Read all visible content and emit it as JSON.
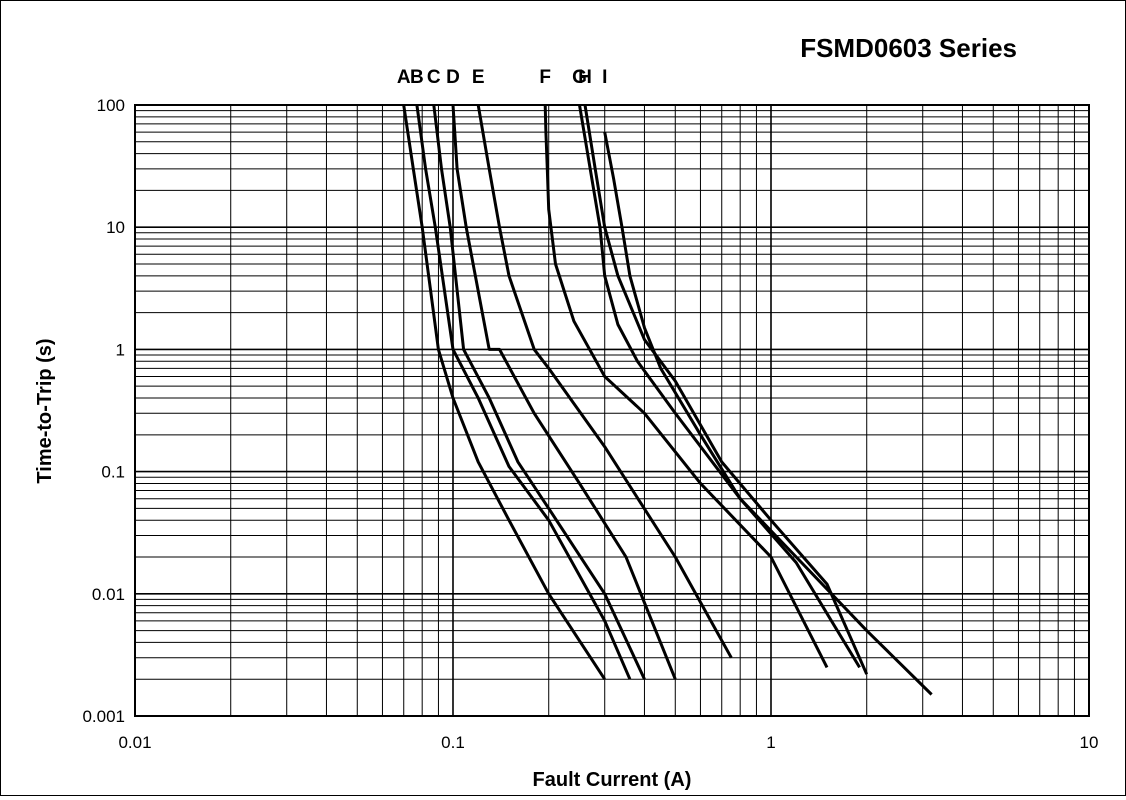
{
  "chart_data": {
    "type": "line",
    "title": "FSMD0603 Series",
    "xlabel": "Fault Current (A)",
    "ylabel": "Time-to-Trip (s)",
    "x_scale": "log",
    "y_scale": "log",
    "xlim": [
      0.01,
      10
    ],
    "ylim": [
      0.001,
      100
    ],
    "x_ticks": [
      "0.01",
      "0.1",
      "1",
      "10"
    ],
    "y_ticks": [
      "0.001",
      "0.01",
      "0.1",
      "1",
      "10",
      "100"
    ],
    "grid": true,
    "series": [
      {
        "name": "A",
        "x": [
          0.07,
          0.075,
          0.08,
          0.09,
          0.1,
          0.12,
          0.15,
          0.2,
          0.3
        ],
        "y": [
          100,
          30,
          10,
          1,
          0.4,
          0.12,
          0.04,
          0.01,
          0.002
        ]
      },
      {
        "name": "B",
        "x": [
          0.077,
          0.082,
          0.088,
          0.1,
          0.12,
          0.15,
          0.2,
          0.3,
          0.36
        ],
        "y": [
          100,
          30,
          10,
          1,
          0.4,
          0.11,
          0.04,
          0.006,
          0.002
        ]
      },
      {
        "name": "C",
        "x": [
          0.087,
          0.092,
          0.098,
          0.108,
          0.13,
          0.16,
          0.2,
          0.3,
          0.4
        ],
        "y": [
          100,
          30,
          10,
          1,
          0.4,
          0.12,
          0.05,
          0.01,
          0.002
        ]
      },
      {
        "name": "D",
        "x": [
          0.1,
          0.103,
          0.11,
          0.13,
          0.14,
          0.18,
          0.25,
          0.35,
          0.5
        ],
        "y": [
          100,
          30,
          10,
          1,
          1,
          0.3,
          0.08,
          0.02,
          0.002
        ]
      },
      {
        "name": "E",
        "x": [
          0.12,
          0.13,
          0.14,
          0.15,
          0.18,
          0.2,
          0.3,
          0.5,
          0.75
        ],
        "y": [
          100,
          30,
          10,
          4,
          1,
          0.7,
          0.16,
          0.02,
          0.003
        ]
      },
      {
        "name": "F",
        "x": [
          0.195,
          0.196,
          0.198,
          0.2,
          0.21,
          0.24,
          0.3,
          0.4,
          0.6,
          1.0,
          1.5
        ],
        "y": [
          100,
          60,
          30,
          14,
          5,
          1.7,
          0.6,
          0.3,
          0.08,
          0.02,
          0.0025
        ]
      },
      {
        "name": "G",
        "x": [
          0.25,
          0.27,
          0.29,
          0.3,
          0.33,
          0.38,
          0.5,
          0.8,
          1.2,
          1.9
        ],
        "y": [
          100,
          30,
          10,
          4,
          1.6,
          0.8,
          0.3,
          0.06,
          0.018,
          0.0025
        ]
      },
      {
        "name": "H",
        "x": [
          0.26,
          0.28,
          0.3,
          0.33,
          0.4,
          0.5,
          0.7,
          1.0,
          1.5,
          2.0
        ],
        "y": [
          100,
          30,
          10,
          4,
          1.2,
          0.55,
          0.12,
          0.04,
          0.012,
          0.0022
        ]
      },
      {
        "name": "I",
        "x": [
          0.3,
          0.32,
          0.34,
          0.36,
          0.4,
          0.45,
          0.6,
          0.8,
          1.2,
          2.0,
          3.2
        ],
        "y": [
          60,
          25,
          10,
          4,
          1.5,
          0.7,
          0.2,
          0.06,
          0.02,
          0.005,
          0.0015
        ]
      }
    ]
  }
}
